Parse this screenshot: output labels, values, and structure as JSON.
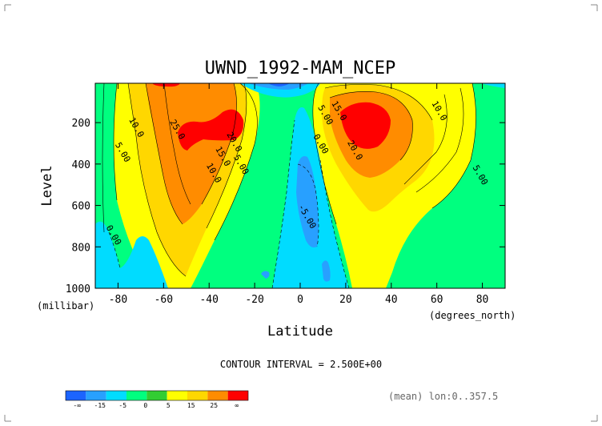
{
  "chart_data": {
    "type": "heatmap",
    "title": "UWND_1992-MAM_NCEP",
    "xlabel": "Latitude",
    "ylabel": "Level",
    "x_unit": "(degrees_north)",
    "y_unit": "(millibar)",
    "xlim": [
      -90,
      90
    ],
    "ylim": [
      1000,
      10
    ],
    "y_inverted": true,
    "x_ticks": [
      -80,
      -60,
      -40,
      -20,
      0,
      20,
      40,
      60,
      80
    ],
    "y_ticks": [
      200,
      400,
      600,
      800,
      1000
    ],
    "contour_interval_text": "CONTOUR INTERVAL = 2.500E+00",
    "mean_text": "(mean) lon:0..357.5",
    "legend": {
      "labels": [
        "-∞",
        "-15",
        "-5",
        "0",
        "5",
        "15",
        "25",
        "∞"
      ],
      "colors": [
        "#1c64ff",
        "#28a0ff",
        "#00dcff",
        "#00ff7f",
        "#32cd32",
        "#ffff00",
        "#ffd700",
        "#ff8c00",
        "#ff0000"
      ]
    },
    "contour_labels": [
      {
        "text": "10.0",
        "lat": -73,
        "lev": 230
      },
      {
        "text": "5.00",
        "lat": -79,
        "lev": 350
      },
      {
        "text": "25.0",
        "lat": -55,
        "lev": 240
      },
      {
        "text": "20.0",
        "lat": -30,
        "lev": 300
      },
      {
        "text": "15.0",
        "lat": -35,
        "lev": 370
      },
      {
        "text": "10.0",
        "lat": -39,
        "lev": 450
      },
      {
        "text": "5.00",
        "lat": -27,
        "lev": 410
      },
      {
        "text": "0.00",
        "lat": -83,
        "lev": 750
      },
      {
        "text": "5.00",
        "lat": 10,
        "lev": 170
      },
      {
        "text": "15.0",
        "lat": 16,
        "lev": 150
      },
      {
        "text": "0.00",
        "lat": 8,
        "lev": 310
      },
      {
        "text": "20.0",
        "lat": 23,
        "lev": 340
      },
      {
        "text": "10.0",
        "lat": 60,
        "lev": 150
      },
      {
        "text": "5.00",
        "lat": 78,
        "lev": 460
      },
      {
        "text": "-5.00",
        "lat": 2,
        "lev": 660
      }
    ],
    "features": [
      {
        "type": "jet",
        "hemisphere": "south",
        "lat": -42,
        "lev": 220,
        "peak": 27.5
      },
      {
        "type": "jet",
        "hemisphere": "north",
        "lat": 28,
        "lev": 200,
        "peak": 27.5
      },
      {
        "type": "easterly",
        "lat": 0,
        "lev": 500,
        "min": -7.5
      },
      {
        "type": "easterly",
        "lat": -5,
        "lev": 60,
        "min": -10
      }
    ]
  }
}
